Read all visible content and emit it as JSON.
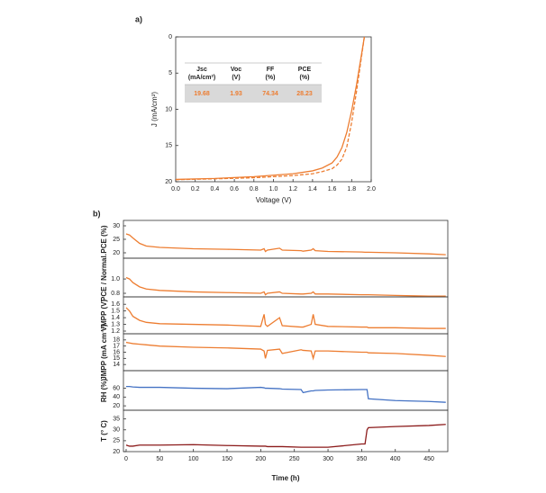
{
  "chart_data": [
    {
      "type": "line",
      "panel_label": "a)",
      "xlabel": "Voltage (V)",
      "ylabel": "J (mA/cm²)",
      "x": [
        0,
        0.4,
        0.8,
        1.2,
        1.4,
        1.5,
        1.6,
        1.65,
        1.7,
        1.75,
        1.8,
        1.85,
        1.9,
        1.93
      ],
      "series": [
        {
          "color": "#ED7D31",
          "linestyle": "solid",
          "values": [
            19.68,
            19.55,
            19.3,
            18.9,
            18.5,
            18.1,
            17.4,
            16.6,
            15.3,
            13.2,
            10.2,
            6.6,
            2.5,
            0
          ]
        },
        {
          "color": "#ED7D31",
          "linestyle": "dashed",
          "values": [
            19.72,
            19.6,
            19.45,
            19.15,
            18.9,
            18.6,
            18.2,
            17.7,
            16.9,
            15.2,
            11.8,
            7.5,
            2.8,
            0
          ]
        }
      ],
      "xlim": [
        0,
        2
      ],
      "xticks": [
        {
          "value": 0,
          "label": "0.0"
        },
        0.2,
        0.4,
        0.6,
        0.8,
        {
          "value": 1,
          "label": "1.0"
        },
        1.2,
        1.4,
        1.6,
        1.8,
        {
          "value": 2,
          "label": "2.0"
        }
      ],
      "ylim": [
        0,
        20
      ],
      "yticks": [
        0,
        5,
        10,
        15,
        20
      ],
      "y_inverted": true,
      "table": {
        "header": [
          [
            "Jsc",
            "(mA/cm²)"
          ],
          [
            "Voc",
            "(V)"
          ],
          [
            "FF",
            "(%)"
          ],
          [
            "PCE",
            "(%)"
          ]
        ],
        "rows": [
          [
            19.68,
            1.93,
            74.34,
            28.23
          ]
        ]
      }
    },
    {
      "type": "line",
      "panel_label": "b)",
      "ylabel": "PCE (%)",
      "x": [
        0,
        5,
        10,
        20,
        30,
        50,
        100,
        150,
        200,
        205,
        207,
        210,
        228,
        232,
        260,
        263,
        275,
        278,
        281,
        300,
        350,
        355,
        358,
        360,
        400,
        450,
        475
      ],
      "series": [
        {
          "color": "#ED7D31",
          "values": [
            27,
            26.6,
            25.5,
            23.5,
            22.5,
            22,
            21.5,
            21.3,
            21,
            21.5,
            20.5,
            21,
            21.7,
            21,
            20.8,
            20.6,
            21,
            21.5,
            20.8,
            20.5,
            20.3,
            20.2,
            20.2,
            20.2,
            20,
            19.6,
            19.3
          ]
        }
      ],
      "xlim": [
        -4,
        478
      ],
      "ylim": [
        18,
        32
      ],
      "yticks": [
        20,
        25,
        30
      ]
    },
    {
      "type": "line",
      "ylabel": "PCE / Normal.",
      "x": [
        0,
        5,
        10,
        20,
        30,
        50,
        100,
        150,
        200,
        205,
        207,
        210,
        228,
        232,
        260,
        263,
        275,
        278,
        281,
        300,
        350,
        355,
        358,
        360,
        400,
        450,
        475
      ],
      "series": [
        {
          "color": "#ED7D31",
          "values": [
            1.02,
            1.0,
            0.95,
            0.89,
            0.86,
            0.84,
            0.82,
            0.81,
            0.8,
            0.82,
            0.78,
            0.8,
            0.82,
            0.8,
            0.79,
            0.79,
            0.8,
            0.82,
            0.79,
            0.79,
            0.78,
            0.78,
            0.78,
            0.78,
            0.77,
            0.76,
            0.76
          ]
        }
      ],
      "xlim": [
        -4,
        478
      ],
      "ylim": [
        0.75,
        1.29
      ],
      "yticks": [
        {
          "value": 0.8,
          "label": "0.8"
        },
        {
          "value": 1,
          "label": "1.0"
        }
      ]
    },
    {
      "type": "line",
      "ylabel": "VMPP (V)",
      "x": [
        0,
        5,
        10,
        20,
        30,
        50,
        100,
        150,
        200,
        205,
        207,
        210,
        228,
        232,
        260,
        263,
        275,
        278,
        281,
        300,
        350,
        355,
        358,
        360,
        400,
        450,
        475
      ],
      "series": [
        {
          "color": "#ED7D31",
          "values": [
            1.55,
            1.5,
            1.42,
            1.36,
            1.33,
            1.31,
            1.3,
            1.29,
            1.27,
            1.45,
            1.3,
            1.27,
            1.4,
            1.28,
            1.26,
            1.26,
            1.3,
            1.45,
            1.3,
            1.27,
            1.26,
            1.26,
            1.26,
            1.25,
            1.25,
            1.24,
            1.24
          ]
        }
      ],
      "xlim": [
        -4,
        478
      ],
      "ylim": [
        1.16,
        1.71
      ],
      "yticks": [
        1.2,
        1.3,
        1.4,
        1.5,
        1.6
      ]
    },
    {
      "type": "line",
      "ylabel": "JMPP (mA cm⁻²)",
      "x": [
        0,
        5,
        10,
        20,
        30,
        50,
        100,
        150,
        200,
        205,
        207,
        210,
        228,
        232,
        260,
        263,
        275,
        278,
        281,
        300,
        350,
        355,
        358,
        360,
        400,
        450,
        475
      ],
      "series": [
        {
          "color": "#ED7D31",
          "values": [
            17.6,
            17.5,
            17.4,
            17.3,
            17.2,
            17,
            16.8,
            16.7,
            16.5,
            16.2,
            15,
            16.3,
            16.5,
            15.8,
            16.4,
            16.3,
            16.2,
            15,
            16.2,
            16.2,
            16,
            16,
            16,
            15.9,
            15.8,
            15.5,
            15.3
          ]
        }
      ],
      "xlim": [
        -4,
        478
      ],
      "ylim": [
        13,
        19
      ],
      "yticks": [
        14,
        15,
        16,
        17,
        18
      ]
    },
    {
      "type": "line",
      "ylabel": "RH (%)",
      "x": [
        0,
        5,
        10,
        20,
        30,
        50,
        100,
        150,
        200,
        205,
        207,
        210,
        228,
        232,
        260,
        263,
        275,
        278,
        281,
        300,
        350,
        355,
        358,
        360,
        400,
        450,
        475
      ],
      "series": [
        {
          "color": "#4472C4",
          "values": [
            64,
            64,
            63,
            62,
            62,
            62,
            60,
            59,
            62,
            61,
            60,
            60,
            59,
            58,
            57,
            50,
            54,
            54,
            55,
            56,
            57,
            57,
            57,
            36,
            32,
            30,
            28
          ]
        }
      ],
      "xlim": [
        -4,
        478
      ],
      "ylim": [
        10,
        100
      ],
      "yticks": [
        20,
        40,
        60
      ]
    },
    {
      "type": "line",
      "ylabel": "T (° C)",
      "xlabel": "Time (h)",
      "x": [
        0,
        5,
        10,
        20,
        30,
        50,
        100,
        150,
        200,
        205,
        207,
        210,
        228,
        232,
        260,
        263,
        275,
        278,
        281,
        300,
        350,
        355,
        358,
        360,
        400,
        450,
        475
      ],
      "series": [
        {
          "color": "#8B1A1A",
          "values": [
            23,
            22.5,
            22.5,
            23,
            23,
            23,
            23.2,
            22.8,
            22.5,
            22.5,
            22.5,
            22.3,
            22.3,
            22.3,
            22,
            22,
            22,
            22,
            22,
            22,
            23.5,
            23.5,
            30,
            31,
            31.5,
            32,
            32.5
          ]
        }
      ],
      "xlim": [
        -4,
        478
      ],
      "xticks": [
        0,
        50,
        100,
        150,
        200,
        250,
        300,
        350,
        400,
        450
      ],
      "ylim": [
        20,
        39
      ],
      "yticks": [
        20,
        25,
        30,
        35
      ]
    }
  ]
}
